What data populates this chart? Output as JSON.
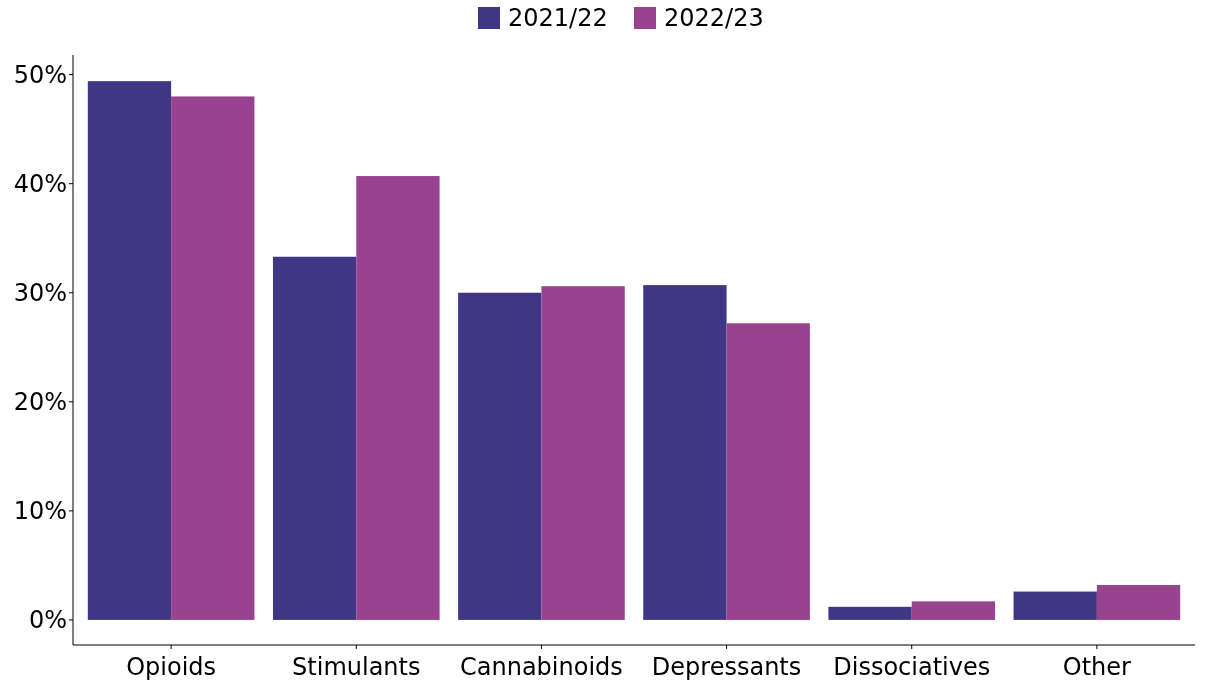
{
  "chart_data": {
    "type": "bar",
    "categories": [
      "Opioids",
      "Stimulants",
      "Cannabinoids",
      "Depressants",
      "Dissociatives",
      "Other"
    ],
    "series": [
      {
        "name": "2021/22",
        "color": "#3f3685",
        "values": [
          49.4,
          33.3,
          30.0,
          30.7,
          1.2,
          2.6
        ]
      },
      {
        "name": "2022/23",
        "color": "#99428f",
        "values": [
          48.0,
          40.7,
          30.6,
          27.2,
          1.7,
          3.2
        ]
      }
    ],
    "ylim": [
      -2.3,
      51.8
    ],
    "yticks": [
      {
        "value": 0,
        "label": "0%"
      },
      {
        "value": 10,
        "label": "10%"
      },
      {
        "value": 20,
        "label": "20%"
      },
      {
        "value": 30,
        "label": "30%"
      },
      {
        "value": 40,
        "label": "40%"
      },
      {
        "value": 50,
        "label": "50%"
      }
    ],
    "grid": false,
    "legend": "top"
  }
}
